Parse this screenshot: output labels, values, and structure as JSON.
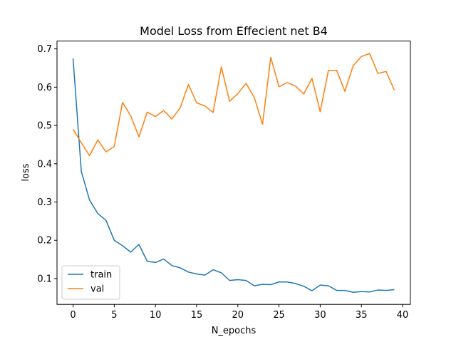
{
  "chart_data": {
    "type": "line",
    "title": "Model Loss  from Effecient net B4",
    "xlabel": "N_epochs",
    "ylabel": "loss",
    "xlim": [
      -1.95,
      40.95
    ],
    "ylim": [
      0.0325,
      0.7205
    ],
    "xticks": [
      0,
      5,
      10,
      15,
      20,
      25,
      30,
      35,
      40
    ],
    "yticks": [
      0.1,
      0.2,
      0.3,
      0.4,
      0.5,
      0.6,
      0.7
    ],
    "grid": false,
    "legend_position": "lower-left",
    "x": [
      0,
      1,
      2,
      3,
      4,
      5,
      6,
      7,
      8,
      9,
      10,
      11,
      12,
      13,
      14,
      15,
      16,
      17,
      18,
      19,
      20,
      21,
      22,
      23,
      24,
      25,
      26,
      27,
      28,
      29,
      30,
      31,
      32,
      33,
      34,
      35,
      36,
      37,
      38,
      39
    ],
    "series": [
      {
        "name": "train",
        "color": "#1f77b4",
        "values": [
          0.675,
          0.38,
          0.305,
          0.27,
          0.252,
          0.2,
          0.186,
          0.169,
          0.189,
          0.145,
          0.142,
          0.151,
          0.134,
          0.128,
          0.117,
          0.112,
          0.109,
          0.123,
          0.115,
          0.095,
          0.097,
          0.095,
          0.081,
          0.085,
          0.084,
          0.091,
          0.091,
          0.087,
          0.08,
          0.068,
          0.083,
          0.081,
          0.069,
          0.069,
          0.064,
          0.066,
          0.065,
          0.07,
          0.069,
          0.071
        ]
      },
      {
        "name": "val",
        "color": "#ff7f0e",
        "values": [
          0.49,
          0.455,
          0.421,
          0.462,
          0.431,
          0.445,
          0.56,
          0.525,
          0.47,
          0.535,
          0.523,
          0.539,
          0.517,
          0.546,
          0.607,
          0.559,
          0.551,
          0.534,
          0.653,
          0.563,
          0.583,
          0.61,
          0.573,
          0.503,
          0.678,
          0.601,
          0.612,
          0.603,
          0.582,
          0.623,
          0.536,
          0.644,
          0.644,
          0.589,
          0.656,
          0.68,
          0.688,
          0.636,
          0.641,
          0.592
        ]
      }
    ]
  }
}
